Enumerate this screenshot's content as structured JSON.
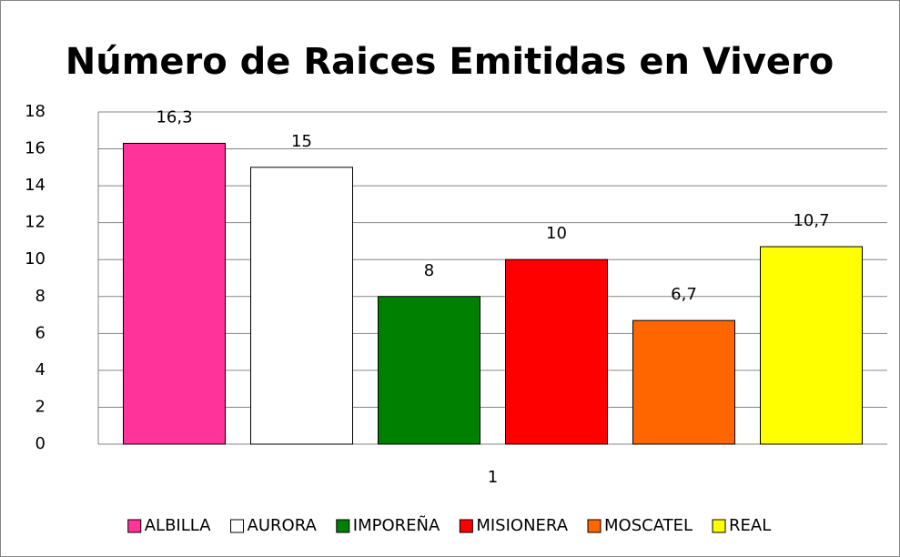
{
  "chart_data": {
    "type": "bar",
    "title": "Número de Raices Emitidas en Vivero",
    "categories": [
      "1"
    ],
    "series": [
      {
        "name": "ALBILLA",
        "color": "#ff3399",
        "values": [
          16.3
        ],
        "value_labels": [
          "16,3"
        ]
      },
      {
        "name": "AURORA",
        "color": "#ffffff",
        "values": [
          15
        ],
        "value_labels": [
          "15"
        ]
      },
      {
        "name": "IMPOREÑA",
        "color": "#008000",
        "values": [
          8
        ],
        "value_labels": [
          "8"
        ]
      },
      {
        "name": "MISIONERA",
        "color": "#ff0000",
        "values": [
          10
        ],
        "value_labels": [
          "10"
        ]
      },
      {
        "name": "MOSCATEL",
        "color": "#ff6600",
        "values": [
          6.7
        ],
        "value_labels": [
          "6,7"
        ]
      },
      {
        "name": "REAL",
        "color": "#ffff00",
        "values": [
          10.7
        ],
        "value_labels": [
          "10,7"
        ]
      }
    ],
    "ylim": [
      0,
      18
    ],
    "yticks": [
      0,
      2,
      4,
      6,
      8,
      10,
      12,
      14,
      16,
      18
    ],
    "grid": true,
    "legend": "bottom"
  }
}
